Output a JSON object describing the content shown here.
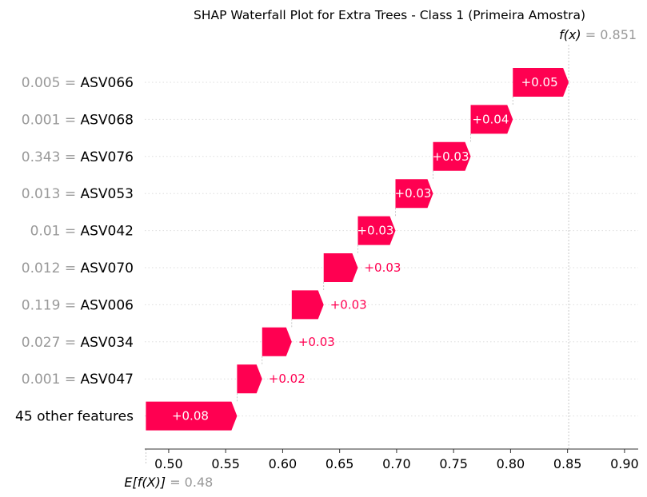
{
  "chart_data": {
    "type": "waterfall",
    "title": "SHAP Waterfall Plot for Extra Trees - Class 1 (Primeira Amostra)",
    "base_value": 0.48,
    "base_label_text": "E[f(X)]",
    "base_value_text": "= 0.48",
    "final_value": 0.851,
    "final_label_text": "f(x)",
    "final_value_text": "= 0.851",
    "xlim": [
      0.479,
      0.912
    ],
    "x_ticks": [
      0.5,
      0.55,
      0.6,
      0.65,
      0.7,
      0.75,
      0.8,
      0.85,
      0.9
    ],
    "x_tick_labels": [
      "0.50",
      "0.55",
      "0.60",
      "0.65",
      "0.70",
      "0.75",
      "0.80",
      "0.85",
      "0.90"
    ],
    "features": [
      {
        "value": "0.005 =",
        "name": "ASV066",
        "start": 0.802,
        "end": 0.851,
        "contribution": "+0.05"
      },
      {
        "value": "0.001 =",
        "name": "ASV068",
        "start": 0.765,
        "end": 0.802,
        "contribution": "+0.04"
      },
      {
        "value": "0.343 =",
        "name": "ASV076",
        "start": 0.732,
        "end": 0.765,
        "contribution": "+0.03"
      },
      {
        "value": "0.013 =",
        "name": "ASV053",
        "start": 0.699,
        "end": 0.732,
        "contribution": "+0.03"
      },
      {
        "value": "0.01 =",
        "name": "ASV042",
        "start": 0.666,
        "end": 0.699,
        "contribution": "+0.03"
      },
      {
        "value": "0.012 =",
        "name": "ASV070",
        "start": 0.636,
        "end": 0.666,
        "contribution": "+0.03"
      },
      {
        "value": "0.119 =",
        "name": "ASV006",
        "start": 0.608,
        "end": 0.636,
        "contribution": "+0.03"
      },
      {
        "value": "0.027 =",
        "name": "ASV034",
        "start": 0.582,
        "end": 0.608,
        "contribution": "+0.03"
      },
      {
        "value": "0.001 =",
        "name": "ASV047",
        "start": 0.56,
        "end": 0.582,
        "contribution": "+0.02"
      },
      {
        "value": "",
        "name": "45 other features",
        "start": 0.48,
        "end": 0.56,
        "contribution": "+0.08"
      }
    ],
    "positive_color": "#ff0051",
    "value_color": "#999999",
    "inside_label_color": "#ffffff",
    "outside_label_color": "#ff0051",
    "grid": false
  }
}
